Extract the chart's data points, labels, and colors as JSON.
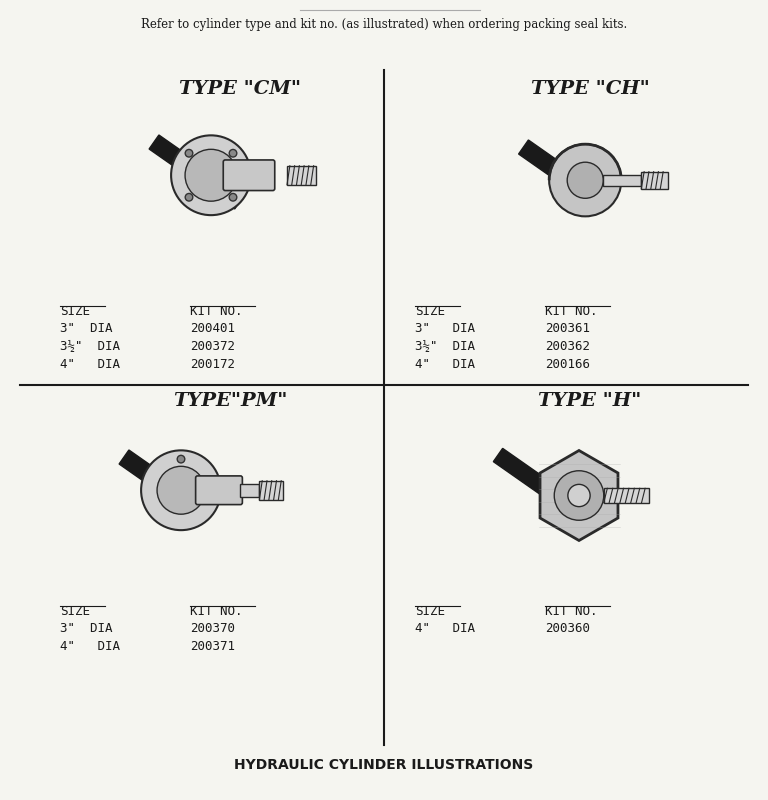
{
  "title_top": "Refer to cylinder type and kit no. (as illustrated) when ordering packing seal kits.",
  "title_bottom": "HYDRAULIC CYLINDER ILLUSTRATIONS",
  "types": [
    "CM",
    "CH",
    "PM",
    "H"
  ],
  "type_labels": [
    "TYPE \"CM\"",
    "TYPE \"CH\"",
    "TYPE\"PM\"",
    "TYPE \"H\""
  ],
  "sections": [
    {
      "type": "CM",
      "label": "TYPE \"CM\"",
      "sizes": [
        "3\"  DIA",
        "3½\"  DIA",
        "4\"   DIA"
      ],
      "kit_nos": [
        "200401",
        "200372",
        "200172"
      ],
      "pos": "top-left"
    },
    {
      "type": "CH",
      "label": "TYPE \"CH\"",
      "sizes": [
        "3\"   DIA",
        "3½\"  DIA",
        "4\"   DIA"
      ],
      "kit_nos": [
        "200361",
        "200362",
        "200166"
      ],
      "pos": "top-right"
    },
    {
      "type": "PM",
      "label": "TYPE\"PM\"",
      "sizes": [
        "3\"  DIA",
        "4\"   DIA"
      ],
      "kit_nos": [
        "200370",
        "200371"
      ],
      "pos": "bottom-left"
    },
    {
      "type": "H",
      "label": "TYPE \"H\"",
      "sizes": [
        "4\"   DIA"
      ],
      "kit_nos": [
        "200360"
      ],
      "pos": "bottom-right"
    }
  ],
  "bg_color": "#f5f5f0",
  "text_color": "#1a1a1a",
  "line_color": "#2a2a2a"
}
